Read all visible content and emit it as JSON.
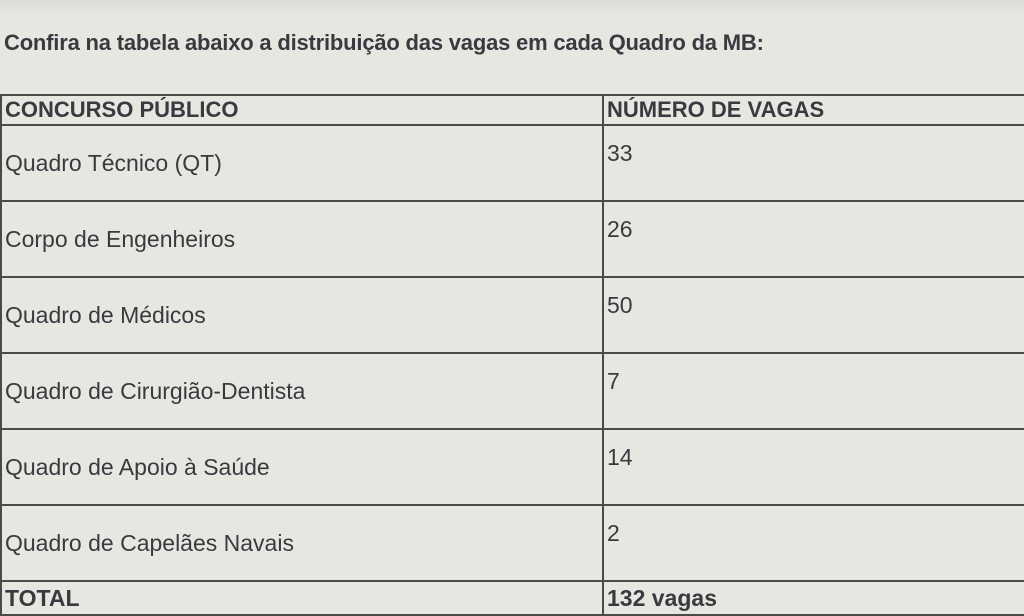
{
  "intro": "Confira na tabela abaixo a distribuição das vagas em cada Quadro da MB:",
  "table": {
    "headers": [
      "CONCURSO PÚBLICO",
      "NÚMERO DE VAGAS"
    ],
    "rows": [
      {
        "name": "Quadro Técnico (QT)",
        "vagas": "33"
      },
      {
        "name": "Corpo de Engenheiros",
        "vagas": "26"
      },
      {
        "name": "Quadro de Médicos",
        "vagas": "50"
      },
      {
        "name": "Quadro de Cirurgião-Dentista",
        "vagas": "7"
      },
      {
        "name": "Quadro de Apoio à Saúde",
        "vagas": "14"
      },
      {
        "name": "Quadro de Capelães Navais",
        "vagas": "2"
      }
    ],
    "total": {
      "label": "TOTAL",
      "value": "132 vagas"
    }
  }
}
